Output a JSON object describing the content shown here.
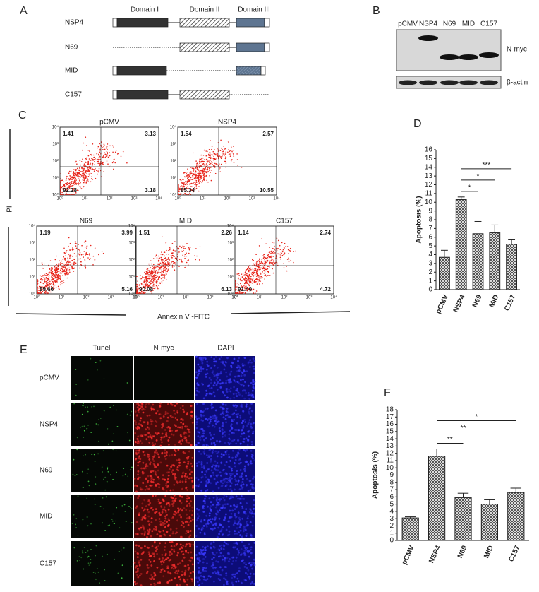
{
  "panels": {
    "A": {
      "label": "A",
      "domains": [
        "Domain I",
        "Domain II",
        "Domain III"
      ],
      "constructs": [
        "NSP4",
        "N69",
        "MID",
        "C157"
      ]
    },
    "B": {
      "label": "B",
      "lanes": [
        "pCMV",
        "NSP4",
        "N69",
        "MID",
        "C157"
      ],
      "bands": [
        "N-myc",
        "β-actin"
      ]
    },
    "C": {
      "label": "C",
      "y_label": "PI",
      "x_label": "Annexin V -FITC",
      "axis_ticks": [
        "10⁰",
        "10¹",
        "10²",
        "10³",
        "10⁴"
      ],
      "plots": [
        {
          "name": "pCMV",
          "quadrants": [
            "1.41",
            "3.13",
            "92.28",
            "3.18"
          ]
        },
        {
          "name": "NSP4",
          "quadrants": [
            "1.54",
            "2.57",
            "85.34",
            "10.55"
          ]
        },
        {
          "name": "N69",
          "quadrants": [
            "1.19",
            "3.99",
            "89.66",
            "5.16"
          ]
        },
        {
          "name": "MID",
          "quadrants": [
            "1.51",
            "2.26",
            "90.08",
            "6.13"
          ]
        },
        {
          "name": "C157",
          "quadrants": [
            "1.14",
            "2.74",
            "91.40",
            "4.72"
          ]
        }
      ]
    },
    "E": {
      "label": "E",
      "columns": [
        "Tunel",
        "N-myc",
        "DAPI"
      ],
      "rows": [
        "pCMV",
        "NSP4",
        "N69",
        "MID",
        "C157"
      ]
    }
  },
  "chart_data": [
    {
      "type": "bar",
      "panel": "D",
      "ylabel": "Apoptosis (%)",
      "categories": [
        "pCMV",
        "NSP4",
        "N69",
        "MID",
        "C157"
      ],
      "values": [
        3.7,
        10.3,
        6.4,
        6.5,
        5.2
      ],
      "errors": [
        0.8,
        0.3,
        1.4,
        0.9,
        0.5
      ],
      "ylim": [
        0,
        16
      ],
      "yticks": [
        0,
        1,
        2,
        3,
        4,
        5,
        6,
        7,
        8,
        9,
        10,
        11,
        12,
        13,
        14,
        15,
        16
      ],
      "comparisons": [
        {
          "pair": [
            "NSP4",
            "N69"
          ],
          "label": "*"
        },
        {
          "pair": [
            "NSP4",
            "MID"
          ],
          "label": "*"
        },
        {
          "pair": [
            "NSP4",
            "C157"
          ],
          "label": "***"
        }
      ]
    },
    {
      "type": "bar",
      "panel": "F",
      "ylabel": "Apoptosis (%)",
      "categories": [
        "pCMV",
        "NSP4",
        "N69",
        "MID",
        "C157"
      ],
      "values": [
        3.1,
        11.6,
        5.9,
        5.0,
        6.6
      ],
      "errors": [
        0.15,
        1.0,
        0.6,
        0.6,
        0.6
      ],
      "ylim": [
        0,
        18
      ],
      "yticks": [
        0,
        1,
        2,
        3,
        4,
        5,
        6,
        7,
        8,
        9,
        10,
        11,
        12,
        13,
        14,
        15,
        16,
        17,
        18
      ],
      "comparisons": [
        {
          "pair": [
            "NSP4",
            "N69"
          ],
          "label": "**"
        },
        {
          "pair": [
            "NSP4",
            "MID"
          ],
          "label": "**"
        },
        {
          "pair": [
            "NSP4",
            "C157"
          ],
          "label": "*"
        }
      ]
    }
  ]
}
